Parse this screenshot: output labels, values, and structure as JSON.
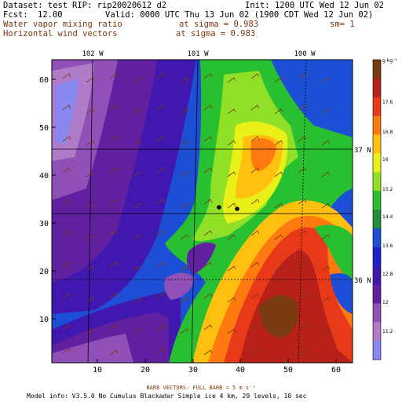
{
  "header": {
    "dataset_label": "Dataset: test",
    "rip_label": "RIP: rip20020612 d2",
    "init_label": "Init: 1200 UTC Wed 12 Jun 02",
    "fcst_label": "Fcst:",
    "fcst_value": "12.00",
    "valid_label": "Valid: 0000 UTC Thu 13 Jun 02 (1900 CDT Wed 12 Jun 02)",
    "field1_name": "Water vapor mixing ratio",
    "field1_level": "at sigma = 0.983",
    "field1_smooth": "sm= 1",
    "field2_name": "Horizontal wind vectors",
    "field2_level": "at sigma = 0.983"
  },
  "map": {
    "top_lon_labels": [
      "102 W",
      "101 W",
      "100 W"
    ],
    "right_lat_labels": [
      "37 N",
      "36 N"
    ],
    "left_axis_ticks": [
      "60",
      "50",
      "40",
      "30",
      "20",
      "10"
    ],
    "bottom_axis_ticks": [
      "10",
      "20",
      "30",
      "40",
      "50",
      "60"
    ]
  },
  "colorbar": {
    "unit_label": "g kg⁻¹",
    "labels": [
      "17.6",
      "16.8",
      "16",
      "15.2",
      "14.4",
      "13.6",
      "12.8",
      "12",
      "11.2"
    ],
    "colors": [
      "#7b3a10",
      "#b8201a",
      "#e83a18",
      "#ff7a10",
      "#ffc010",
      "#e8f018",
      "#90e028",
      "#28c030",
      "#209038",
      "#1c4fd6",
      "#2020c8",
      "#4018b0",
      "#6020a0",
      "#9050b8",
      "#b07cc8",
      "#8888f0"
    ]
  },
  "footer": {
    "barb_label": "BARB VECTORS:  FULL BARB = 5 m s⁻¹",
    "model_info": "Model info: V3.5.0 No Cumulus Blackadar  Simple ice    4 km,  29 levels,   10 sec"
  }
}
